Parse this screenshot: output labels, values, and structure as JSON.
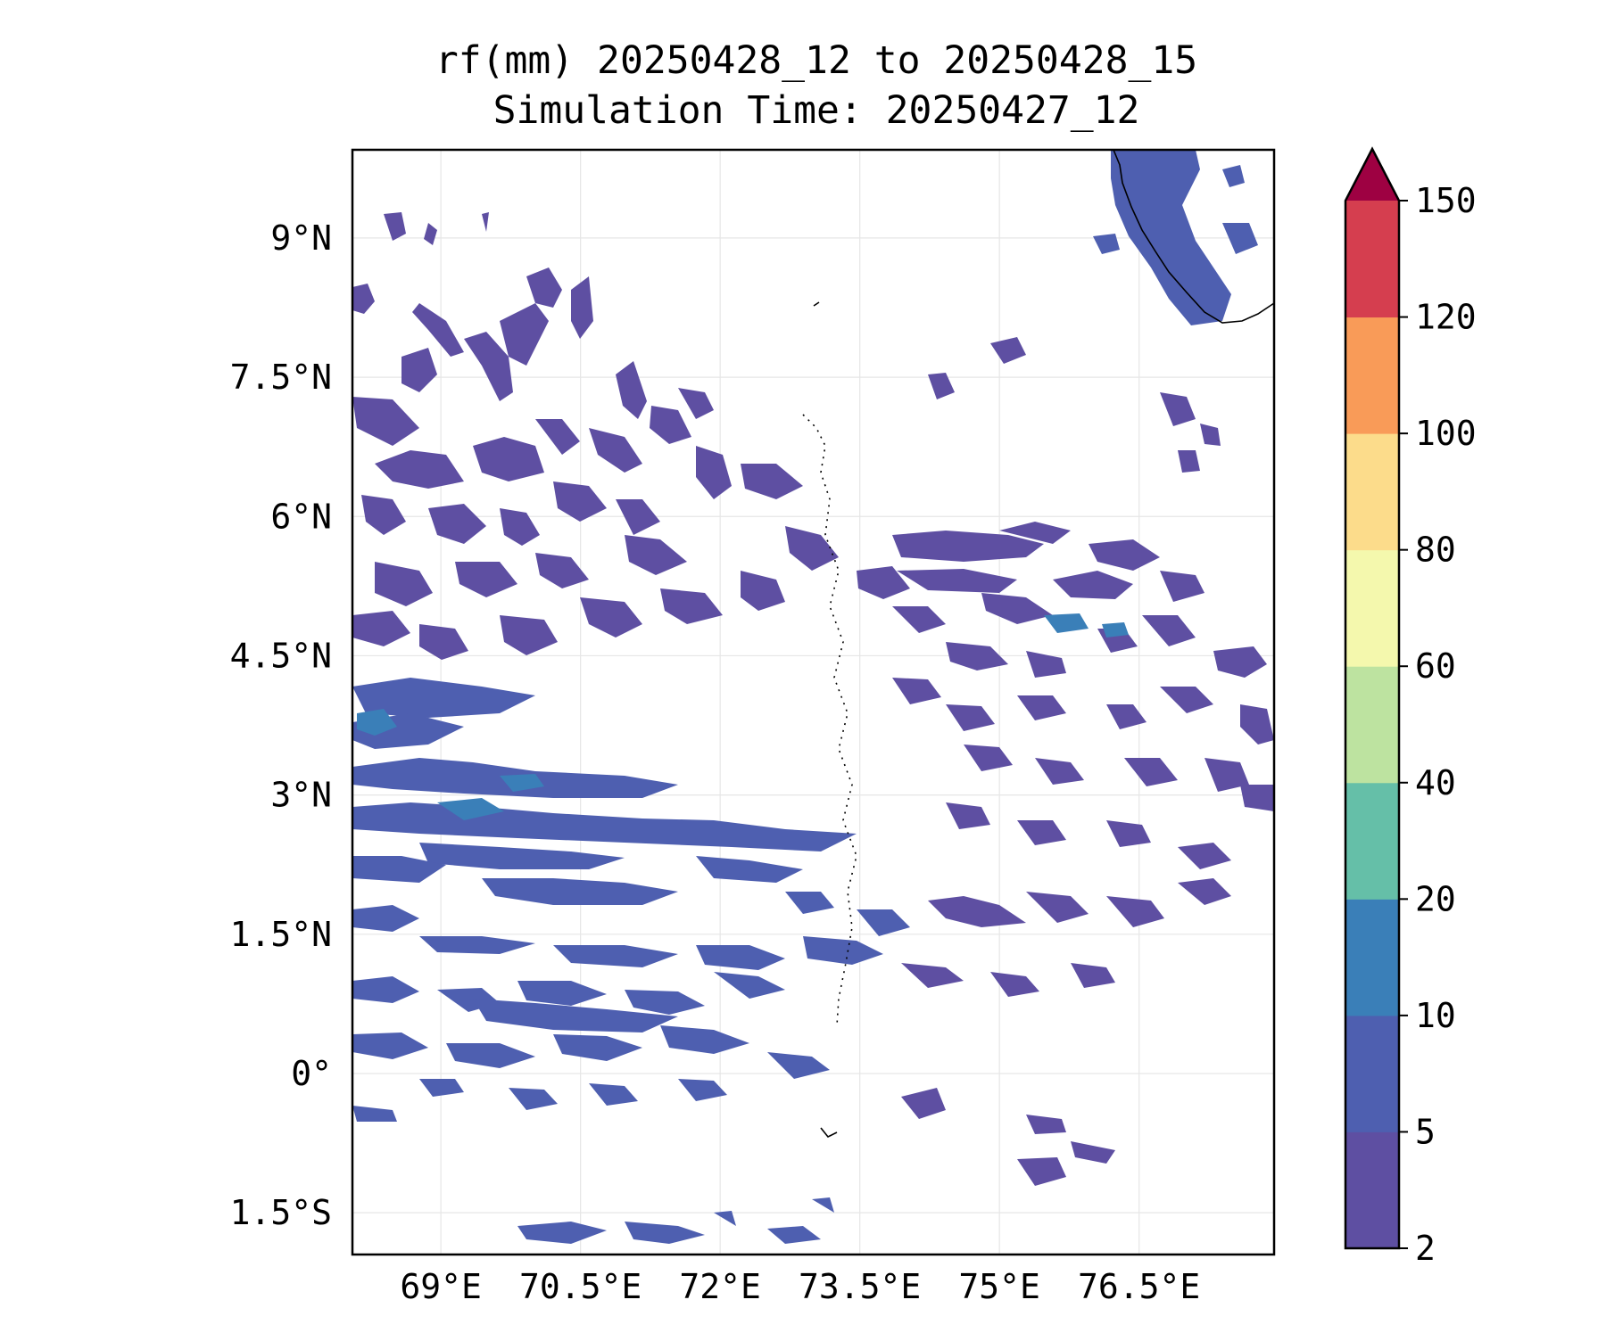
{
  "title": {
    "line1": "rf(mm) 20250428_12 to 20250428_15",
    "line2": "Simulation Time: 20250427_12"
  },
  "map": {
    "lon_range": [
      68.05,
      77.95
    ],
    "lat_range": [
      -1.95,
      9.95
    ],
    "lat_ticks": [
      {
        "value": 9,
        "label": "9°N"
      },
      {
        "value": 7.5,
        "label": "7.5°N"
      },
      {
        "value": 6,
        "label": "6°N"
      },
      {
        "value": 4.5,
        "label": "4.5°N"
      },
      {
        "value": 3,
        "label": "3°N"
      },
      {
        "value": 1.5,
        "label": "1.5°N"
      },
      {
        "value": 0,
        "label": "0°"
      },
      {
        "value": -1.5,
        "label": "1.5°S"
      }
    ],
    "lon_ticks": [
      {
        "value": 69,
        "label": "69°E"
      },
      {
        "value": 70.5,
        "label": "70.5°E"
      },
      {
        "value": 72,
        "label": "72°E"
      },
      {
        "value": 73.5,
        "label": "73.5°E"
      },
      {
        "value": 75,
        "label": "75°E"
      },
      {
        "value": 76.5,
        "label": "76.5°E"
      }
    ],
    "grid": true
  },
  "colorbar": {
    "levels": [
      2,
      5,
      10,
      20,
      40,
      60,
      80,
      100,
      120,
      150
    ],
    "labels": [
      "2",
      "5",
      "10",
      "20",
      "40",
      "60",
      "80",
      "100",
      "120",
      "150"
    ],
    "colors": [
      "#5e4fa2",
      "#4e5fb0",
      "#3a7fb8",
      "#65bfa8",
      "#bde3a0",
      "#f4f8ad",
      "#fcdc8b",
      "#f99b58",
      "#d53e4f"
    ],
    "extend_color": "#9e0142",
    "extend": "max"
  },
  "colors": {
    "rain_light": "#5e4fa2",
    "rain_medium": "#4e5fb0",
    "rain_heavy": "#3a7fb8",
    "coast": "#000000",
    "grid": "#e6e6e6"
  }
}
